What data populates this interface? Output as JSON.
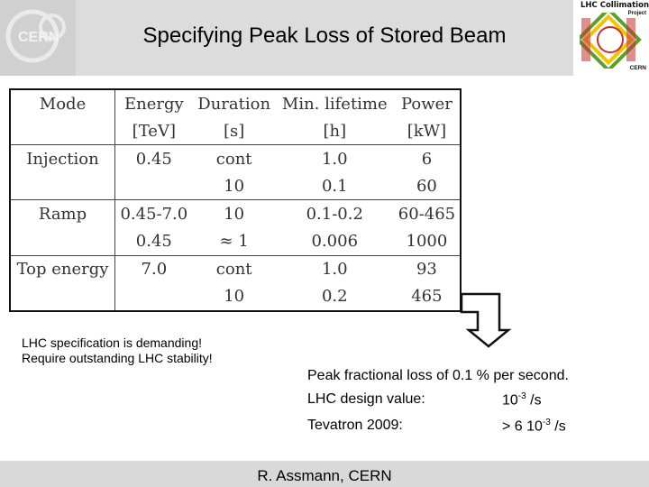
{
  "header": {
    "title": "Specifying Peak Loss of Stored Beam",
    "cern_logo_text": "CERN",
    "collimation_logo": {
      "line1": "LHC Collimation",
      "line2": "Project",
      "line3": "CERN"
    }
  },
  "table": {
    "headers": [
      [
        "Mode",
        ""
      ],
      [
        "Energy",
        "[TeV]"
      ],
      [
        "Duration",
        "[s]"
      ],
      [
        "Min. lifetime",
        "[h]"
      ],
      [
        "Power",
        "[kW]"
      ]
    ],
    "rows": [
      {
        "mode": "Injection",
        "energy": "0.45",
        "duration": "cont",
        "lifetime": "1.0",
        "power": "6"
      },
      {
        "mode": "",
        "energy": "",
        "duration": "10",
        "lifetime": "0.1",
        "power": "60"
      },
      {
        "mode": "Ramp",
        "energy": "0.45-7.0",
        "duration": "10",
        "lifetime": "0.1-0.2",
        "power": "60-465"
      },
      {
        "mode": "",
        "energy": "0.45",
        "duration": "≈ 1",
        "lifetime": "0.006",
        "power": "1000"
      },
      {
        "mode": "Top energy",
        "energy": "7.0",
        "duration": "cont",
        "lifetime": "1.0",
        "power": "93"
      },
      {
        "mode": "",
        "energy": "",
        "duration": "10",
        "lifetime": "0.2",
        "power": "465"
      }
    ]
  },
  "note": {
    "line1": "LHC specification is demanding!",
    "line2": "Require outstanding LHC stability!"
  },
  "peak_loss": {
    "text": "Peak fractional loss of 0.1 % per second.",
    "design_label": "LHC design value:",
    "design_base": "10",
    "design_exp": "-3",
    "design_unit": " /s",
    "tevatron_label": "Tevatron 2009:",
    "tevatron_base": "> 6 10",
    "tevatron_exp": "-3",
    "tevatron_unit": " /s"
  },
  "footer": {
    "author": "R. Assmann, CERN"
  },
  "colors": {
    "header_bg": "#dcdcdc",
    "footer_bg": "#d9d9d9",
    "logo_ring": "#e8bcbc",
    "collim_red": "#c9302c",
    "collim_green": "#5aa02c",
    "collim_yellow": "#f2c400"
  }
}
